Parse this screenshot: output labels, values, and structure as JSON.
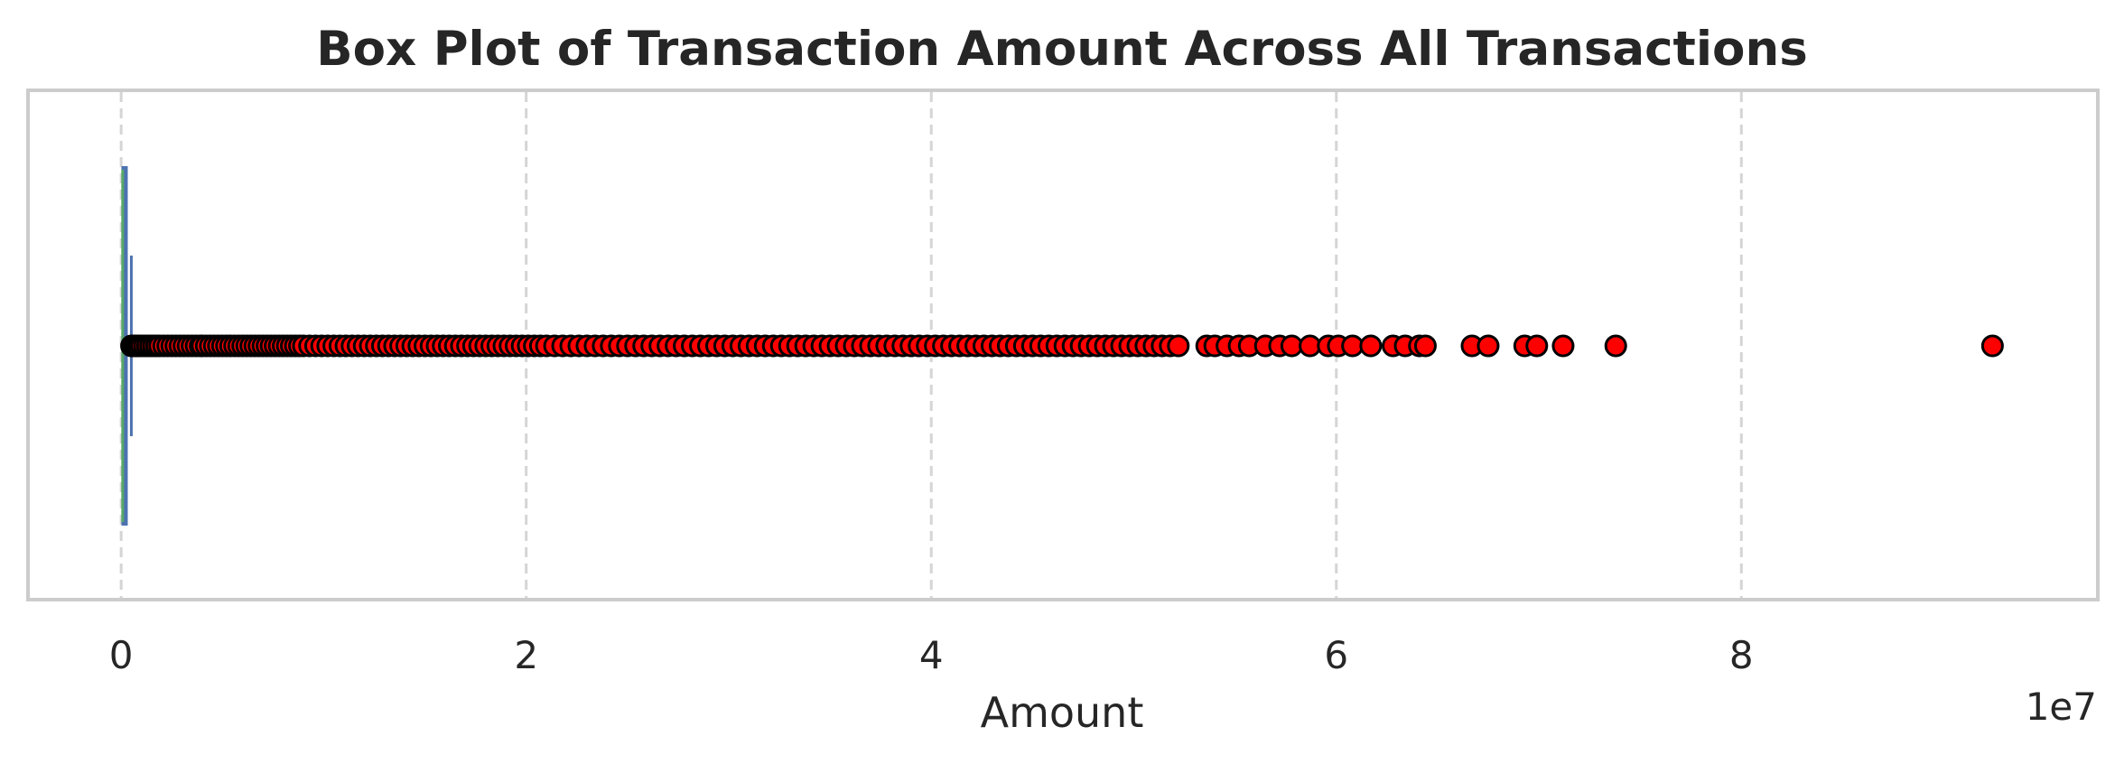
{
  "chart_data": {
    "type": "box",
    "title": "Box Plot of Transaction Amount Across All Transactions",
    "xlabel": "Amount",
    "ylabel": "",
    "scale_note": "1e7",
    "xlim": [
      -4600000,
      97600000
    ],
    "xticks": [
      0,
      20000000,
      40000000,
      60000000,
      80000000
    ],
    "xtick_labels": [
      "0",
      "2",
      "4",
      "6",
      "8"
    ],
    "grid": "x-axis dashed",
    "box": {
      "min": 0,
      "q1": 13400,
      "median": 75000,
      "q3": 208700,
      "whisker_high": 501700
    },
    "outliers": [
      510000,
      560000,
      620000,
      700000,
      780000,
      880000,
      1000000,
      1150000,
      1300000,
      1450000,
      1600000,
      1750000,
      1900000,
      2100000,
      2300000,
      2500000,
      2700000,
      2900000,
      3100000,
      3300000,
      3500000,
      3700000,
      3900000,
      4000000,
      4200000,
      4400000,
      4600000,
      4800000,
      5000000,
      5200000,
      5400000,
      5600000,
      5800000,
      6000000,
      6200000,
      6400000,
      6600000,
      6800000,
      7000000,
      7200000,
      7400000,
      7600000,
      7800000,
      8000000,
      8200000,
      8400000,
      8600000,
      8800000,
      9000000,
      9300000,
      9600000,
      9900000,
      10200000,
      10500000,
      10800000,
      11100000,
      11400000,
      11700000,
      12000000,
      12300000,
      12600000,
      12900000,
      13200000,
      13500000,
      13800000,
      14100000,
      14400000,
      14700000,
      15000000,
      15300000,
      15600000,
      15900000,
      16200000,
      16500000,
      16800000,
      17100000,
      17400000,
      17700000,
      18000000,
      18300000,
      18600000,
      18900000,
      19200000,
      19500000,
      19800000,
      20100000,
      20400000,
      20700000,
      21000000,
      21400000,
      21800000,
      22200000,
      22600000,
      23000000,
      23400000,
      23800000,
      24200000,
      24600000,
      25000000,
      25400000,
      25800000,
      26200000,
      26600000,
      27000000,
      27400000,
      27800000,
      28200000,
      28600000,
      29000000,
      29400000,
      29800000,
      30200000,
      30600000,
      31000000,
      31400000,
      31800000,
      32200000,
      32600000,
      33000000,
      33400000,
      33800000,
      34200000,
      34600000,
      35000000,
      35400000,
      35800000,
      36200000,
      36600000,
      37000000,
      37400000,
      37800000,
      38200000,
      38600000,
      39000000,
      39400000,
      39800000,
      40200000,
      40600000,
      41000000,
      41400000,
      41800000,
      42200000,
      42600000,
      43000000,
      43400000,
      43800000,
      44200000,
      44600000,
      45000000,
      45400000,
      45800000,
      46200000,
      46600000,
      47000000,
      47400000,
      47800000,
      48200000,
      48600000,
      49000000,
      49400000,
      49800000,
      50200000,
      50600000,
      51000000,
      51400000,
      51800000,
      52200000,
      53600000,
      54000000,
      54600000,
      55200000,
      55700000,
      56500000,
      57200000,
      57800000,
      58700000,
      59600000,
      60100000,
      60800000,
      61700000,
      62800000,
      63400000,
      64100000,
      64400000,
      66700000,
      67500000,
      69300000,
      69900000,
      71200000,
      73800000,
      92400000
    ],
    "colors": {
      "box_fill": "#4c72b0",
      "median_line": "#55a868",
      "whisker": "#4c72b0",
      "outlier_fill": "#ff0000",
      "outlier_edge": "#000000"
    }
  }
}
